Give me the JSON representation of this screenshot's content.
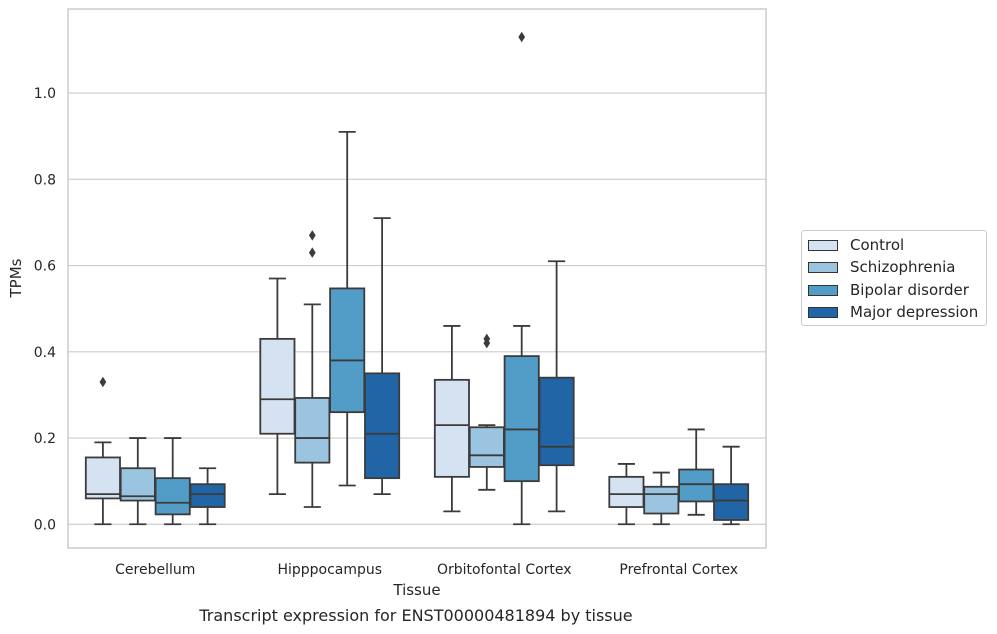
{
  "chart_data": {
    "type": "box",
    "title": "Transcript expression for ENST00000481894 by tissue",
    "xlabel": "Tissue",
    "ylabel": "TPMs",
    "ylim": [
      -0.055,
      1.195
    ],
    "yticks": [
      "0.0",
      "0.2",
      "0.4",
      "0.6",
      "0.8",
      "1.0"
    ],
    "ytick_values": [
      0.0,
      0.2,
      0.4,
      0.6,
      0.8,
      1.0
    ],
    "grid": "horizontal",
    "legend_position": "right",
    "categories": [
      "Cerebellum",
      "Hipppocampus",
      "Orbitofontal Cortex",
      "Prefrontal Cortex"
    ],
    "series": [
      {
        "name": "Control",
        "color": "#d4e2f2",
        "boxes": [
          {
            "whisker_low": 0.0,
            "q1": 0.06,
            "median": 0.07,
            "q3": 0.155,
            "whisker_high": 0.19,
            "outliers": [
              0.33
            ]
          },
          {
            "whisker_low": 0.07,
            "q1": 0.21,
            "median": 0.29,
            "q3": 0.43,
            "whisker_high": 0.57,
            "outliers": []
          },
          {
            "whisker_low": 0.03,
            "q1": 0.11,
            "median": 0.23,
            "q3": 0.335,
            "whisker_high": 0.46,
            "outliers": []
          },
          {
            "whisker_low": 0.0,
            "q1": 0.04,
            "median": 0.07,
            "q3": 0.11,
            "whisker_high": 0.14,
            "outliers": []
          }
        ]
      },
      {
        "name": "Schizophrenia",
        "color": "#9ac4df",
        "boxes": [
          {
            "whisker_low": 0.0,
            "q1": 0.055,
            "median": 0.065,
            "q3": 0.13,
            "whisker_high": 0.2,
            "outliers": []
          },
          {
            "whisker_low": 0.04,
            "q1": 0.143,
            "median": 0.2,
            "q3": 0.293,
            "whisker_high": 0.51,
            "outliers": [
              0.63,
              0.67
            ]
          },
          {
            "whisker_low": 0.08,
            "q1": 0.133,
            "median": 0.16,
            "q3": 0.225,
            "whisker_high": 0.23,
            "outliers": [
              0.42,
              0.43
            ]
          },
          {
            "whisker_low": 0.0,
            "q1": 0.025,
            "median": 0.07,
            "q3": 0.087,
            "whisker_high": 0.12,
            "outliers": []
          }
        ]
      },
      {
        "name": "Bipolar disorder",
        "color": "#529cc8",
        "boxes": [
          {
            "whisker_low": 0.0,
            "q1": 0.023,
            "median": 0.05,
            "q3": 0.107,
            "whisker_high": 0.2,
            "outliers": []
          },
          {
            "whisker_low": 0.09,
            "q1": 0.26,
            "median": 0.38,
            "q3": 0.547,
            "whisker_high": 0.91,
            "outliers": []
          },
          {
            "whisker_low": 0.0,
            "q1": 0.1,
            "median": 0.22,
            "q3": 0.39,
            "whisker_high": 0.46,
            "outliers": [
              1.13
            ]
          },
          {
            "whisker_low": 0.022,
            "q1": 0.053,
            "median": 0.093,
            "q3": 0.127,
            "whisker_high": 0.22,
            "outliers": []
          }
        ]
      },
      {
        "name": "Major depression",
        "color": "#2265a6",
        "boxes": [
          {
            "whisker_low": 0.0,
            "q1": 0.04,
            "median": 0.07,
            "q3": 0.093,
            "whisker_high": 0.13,
            "outliers": []
          },
          {
            "whisker_low": 0.07,
            "q1": 0.107,
            "median": 0.21,
            "q3": 0.35,
            "whisker_high": 0.71,
            "outliers": []
          },
          {
            "whisker_low": 0.03,
            "q1": 0.137,
            "median": 0.18,
            "q3": 0.34,
            "whisker_high": 0.61,
            "outliers": []
          },
          {
            "whisker_low": 0.0,
            "q1": 0.01,
            "median": 0.055,
            "q3": 0.093,
            "whisker_high": 0.18,
            "outliers": []
          }
        ]
      }
    ]
  }
}
